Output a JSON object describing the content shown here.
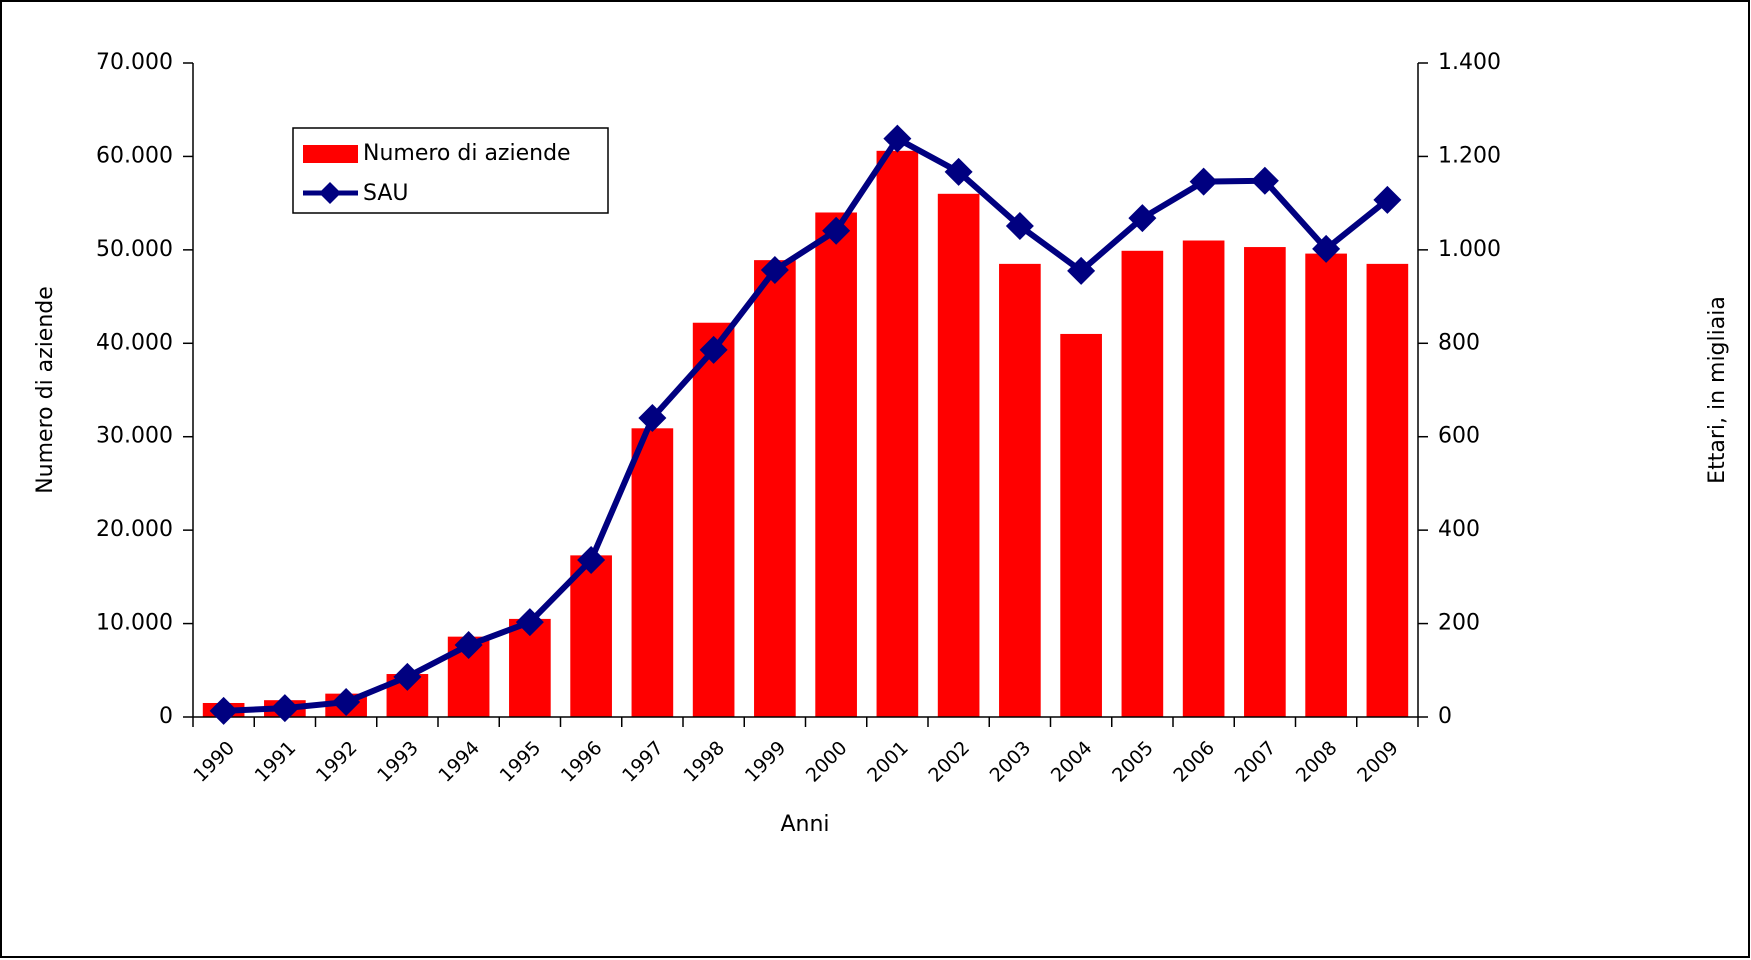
{
  "chart_data": {
    "type": "bar-line",
    "x_label": "Anni",
    "y_label": "Numero di aziende",
    "y2_label": "Ettari, in migliaia",
    "categories": [
      "1990",
      "1991",
      "1992",
      "1993",
      "1994",
      "1995",
      "1996",
      "1997",
      "1998",
      "1999",
      "2000",
      "2001",
      "2002",
      "2003",
      "2004",
      "2005",
      "2006",
      "2007",
      "2008",
      "2009"
    ],
    "series": [
      {
        "name": "Numero di aziende",
        "type": "bar",
        "color": "#ff0000",
        "values": [
          1500,
          1800,
          2500,
          4600,
          8600,
          10500,
          17300,
          30900,
          42200,
          48900,
          54000,
          60600,
          56000,
          48500,
          41000,
          49900,
          51000,
          50300,
          49600,
          48500
        ]
      },
      {
        "name": "SAU",
        "type": "line",
        "axis": "y2",
        "color": "#000080",
        "values": [
          13,
          19,
          32,
          86,
          154,
          203,
          336,
          640,
          786,
          957,
          1041,
          1238,
          1167,
          1051,
          955,
          1068,
          1146,
          1148,
          1002,
          1107
        ]
      }
    ],
    "ylim": [
      0,
      70000
    ],
    "yticks": [
      0,
      {
        "value": 10000,
        "label": "10.000"
      },
      {
        "value": 20000,
        "label": "20.000"
      },
      {
        "value": 30000,
        "label": "30.000"
      },
      {
        "value": 40000,
        "label": "40.000"
      },
      {
        "value": 50000,
        "label": "50.000"
      },
      {
        "value": 60000,
        "label": "60.000"
      },
      {
        "value": 70000,
        "label": "70.000"
      }
    ],
    "y2lim": [
      0,
      1400
    ],
    "y2ticks": [
      0,
      200,
      400,
      600,
      800,
      {
        "value": 1000,
        "label": "1.000"
      },
      {
        "value": 1200,
        "label": "1.200"
      },
      {
        "value": 1400,
        "label": "1.400"
      }
    ],
    "legend": "upper left"
  }
}
